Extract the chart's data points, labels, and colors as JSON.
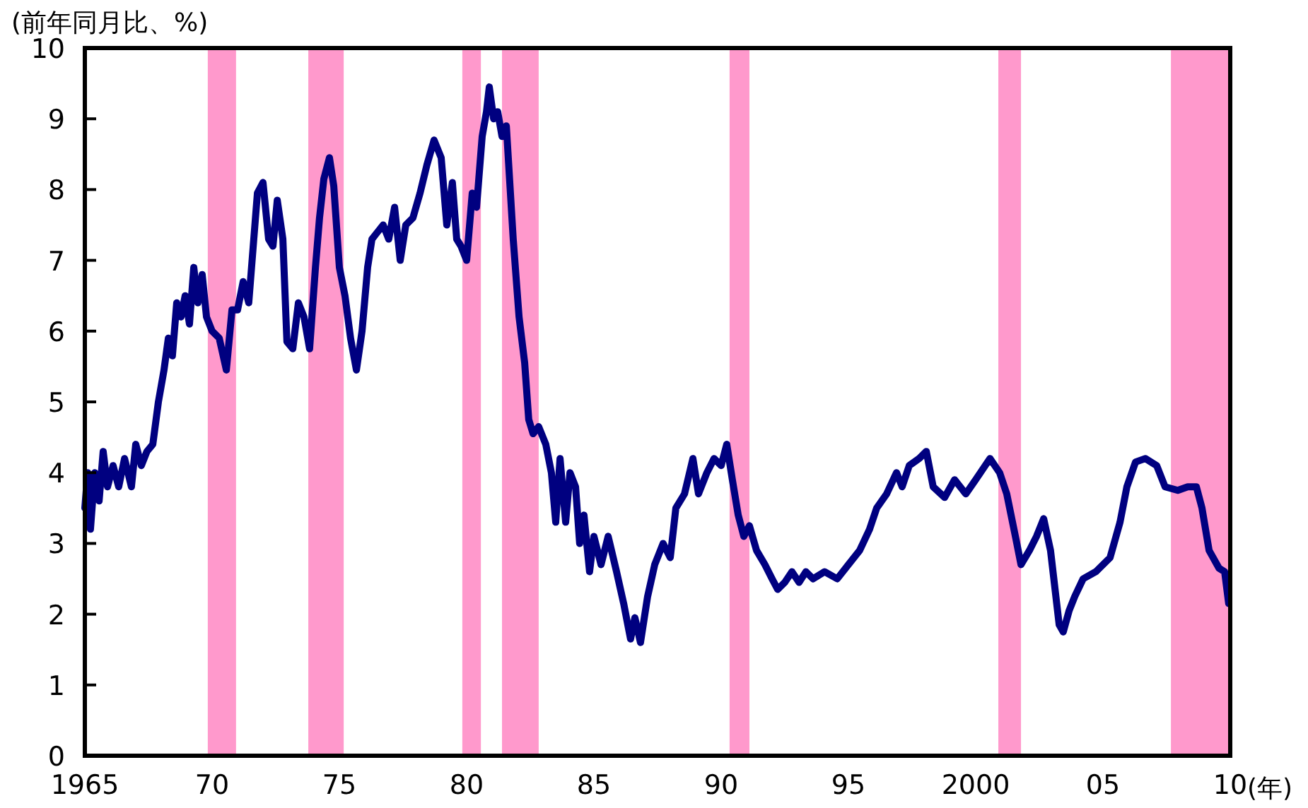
{
  "chart_data": {
    "type": "line",
    "ylabel": "(前年同月比、%)",
    "xlabel": "(年)",
    "xlim": [
      1965,
      2010
    ],
    "ylim": [
      0,
      10
    ],
    "xticks": [
      1965,
      {
        "value": 1970,
        "label": "70"
      },
      {
        "value": 1975,
        "label": "75"
      },
      {
        "value": 1980,
        "label": "80"
      },
      {
        "value": 1985,
        "label": "85"
      },
      {
        "value": 1990,
        "label": "90"
      },
      {
        "value": 1995,
        "label": "95"
      },
      2000,
      {
        "value": 2005,
        "label": "05"
      },
      {
        "value": 2010,
        "label": "10"
      }
    ],
    "yticks": [
      0,
      1,
      2,
      3,
      4,
      5,
      6,
      7,
      8,
      9,
      10
    ],
    "bands": [
      {
        "axis": "x",
        "from": 1969.83,
        "to": 1970.94,
        "color": "#ff99cc"
      },
      {
        "axis": "x",
        "from": 1973.78,
        "to": 1975.17,
        "color": "#ff99cc"
      },
      {
        "axis": "x",
        "from": 1979.83,
        "to": 1980.56,
        "color": "#ff99cc"
      },
      {
        "axis": "x",
        "from": 1981.39,
        "to": 1982.83,
        "color": "#ff99cc"
      },
      {
        "axis": "x",
        "from": 1990.33,
        "to": 1991.11,
        "color": "#ff99cc"
      },
      {
        "axis": "x",
        "from": 2000.89,
        "to": 2001.78,
        "color": "#ff99cc"
      },
      {
        "axis": "x",
        "from": 2007.67,
        "to": 2010,
        "color": "#ff99cc"
      }
    ],
    "x": [
      1965.0,
      1965.11,
      1965.22,
      1965.39,
      1965.56,
      1965.72,
      1965.89,
      1966.11,
      1966.33,
      1966.56,
      1966.83,
      1967.0,
      1967.22,
      1967.44,
      1967.67,
      1967.89,
      1968.11,
      1968.28,
      1968.44,
      1968.61,
      1968.78,
      1968.94,
      1969.11,
      1969.28,
      1969.44,
      1969.61,
      1969.78,
      1970.0,
      1970.28,
      1970.56,
      1970.78,
      1971.0,
      1971.22,
      1971.44,
      1971.78,
      1972.0,
      1972.22,
      1972.39,
      1972.56,
      1972.78,
      1972.94,
      1973.17,
      1973.39,
      1973.61,
      1973.83,
      1974.06,
      1974.22,
      1974.39,
      1974.61,
      1974.78,
      1975.0,
      1975.22,
      1975.44,
      1975.67,
      1975.89,
      1976.11,
      1976.28,
      1976.5,
      1976.72,
      1976.94,
      1977.17,
      1977.39,
      1977.61,
      1977.89,
      1978.17,
      1978.44,
      1978.72,
      1979.0,
      1979.22,
      1979.44,
      1979.61,
      1979.78,
      1980.0,
      1980.22,
      1980.39,
      1980.61,
      1980.78,
      1980.89,
      1981.06,
      1981.22,
      1981.39,
      1981.56,
      1981.83,
      1982.06,
      1982.28,
      1982.44,
      1982.61,
      1982.83,
      1983.11,
      1983.33,
      1983.5,
      1983.67,
      1983.89,
      1984.06,
      1984.28,
      1984.44,
      1984.61,
      1984.83,
      1985.0,
      1985.28,
      1985.56,
      1985.89,
      1986.17,
      1986.44,
      1986.61,
      1986.83,
      1987.11,
      1987.39,
      1987.72,
      1988.0,
      1988.22,
      1988.56,
      1988.89,
      1989.11,
      1989.44,
      1989.72,
      1990.0,
      1990.22,
      1990.44,
      1990.67,
      1990.89,
      1991.11,
      1991.39,
      1991.72,
      1992.0,
      1992.22,
      1992.5,
      1992.78,
      1993.06,
      1993.33,
      1993.61,
      1994.06,
      1994.56,
      1995.0,
      1995.44,
      1995.83,
      1996.11,
      1996.5,
      1996.89,
      1997.11,
      1997.39,
      1997.78,
      1998.06,
      1998.33,
      1998.78,
      1999.17,
      1999.61,
      2000.0,
      2000.56,
      2000.94,
      2001.22,
      2001.56,
      2001.78,
      2002.11,
      2002.39,
      2002.67,
      2002.94,
      2003.28,
      2003.44,
      2003.67,
      2003.89,
      2004.22,
      2004.72,
      2005.28,
      2005.67,
      2005.94,
      2006.28,
      2006.67,
      2007.11,
      2007.44,
      2007.94,
      2008.33,
      2008.67,
      2008.89,
      2009.17,
      2009.56,
      2009.78,
      2009.94
    ],
    "series": [
      {
        "color": "#000080",
        "values": [
          3.5,
          4.0,
          3.2,
          4.0,
          3.6,
          4.3,
          3.8,
          4.1,
          3.8,
          4.2,
          3.8,
          4.4,
          4.1,
          4.3,
          4.4,
          5.0,
          5.45,
          5.9,
          5.65,
          6.4,
          6.2,
          6.5,
          6.1,
          6.9,
          6.4,
          6.8,
          6.2,
          6.0,
          5.9,
          5.45,
          6.3,
          6.3,
          6.7,
          6.4,
          7.95,
          8.1,
          7.3,
          7.2,
          7.85,
          7.3,
          5.85,
          5.75,
          6.4,
          6.2,
          5.75,
          6.9,
          7.6,
          8.15,
          8.45,
          8.05,
          6.9,
          6.5,
          5.9,
          5.45,
          6.0,
          6.9,
          7.3,
          7.4,
          7.5,
          7.3,
          7.75,
          7.0,
          7.5,
          7.6,
          7.95,
          8.35,
          8.7,
          8.45,
          7.5,
          8.1,
          7.3,
          7.2,
          7.0,
          7.95,
          7.75,
          8.75,
          9.1,
          9.45,
          9.0,
          9.1,
          8.75,
          8.9,
          7.3,
          6.2,
          5.55,
          4.75,
          4.55,
          4.65,
          4.4,
          4.0,
          3.3,
          4.2,
          3.3,
          4.0,
          3.8,
          3.0,
          3.4,
          2.6,
          3.1,
          2.7,
          3.1,
          2.6,
          2.15,
          1.65,
          1.95,
          1.6,
          2.25,
          2.7,
          3.0,
          2.8,
          3.5,
          3.7,
          4.2,
          3.7,
          4.0,
          4.2,
          4.1,
          4.4,
          3.9,
          3.4,
          3.1,
          3.25,
          2.9,
          2.7,
          2.5,
          2.35,
          2.45,
          2.6,
          2.45,
          2.6,
          2.5,
          2.6,
          2.5,
          2.7,
          2.9,
          3.2,
          3.5,
          3.7,
          4.0,
          3.8,
          4.1,
          4.2,
          4.3,
          3.8,
          3.65,
          3.9,
          3.7,
          3.9,
          4.2,
          4.0,
          3.7,
          3.1,
          2.7,
          2.9,
          3.1,
          3.35,
          2.9,
          1.85,
          1.75,
          2.05,
          2.25,
          2.5,
          2.6,
          2.8,
          3.3,
          3.8,
          4.15,
          4.2,
          4.1,
          3.8,
          3.75,
          3.8,
          3.8,
          3.5,
          2.9,
          2.65,
          2.6,
          2.15
        ]
      }
    ]
  }
}
